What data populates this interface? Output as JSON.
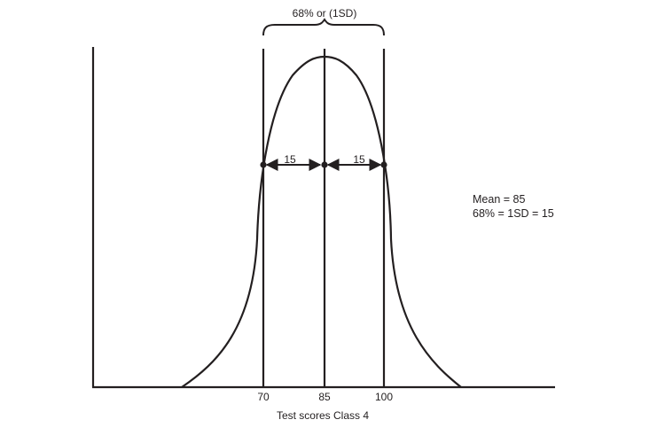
{
  "bracket_label": "68% or (1SD)",
  "interval_left_label": "15",
  "interval_right_label": "15",
  "x_ticks": [
    "70",
    "85",
    "100"
  ],
  "x_axis_title": "Test scores Class 4",
  "legend": {
    "mean_line": "Mean = 85",
    "sd_line": "68% = 1SD = 15"
  },
  "colors": {
    "ink": "#231f20",
    "background": "#ffffff"
  }
}
